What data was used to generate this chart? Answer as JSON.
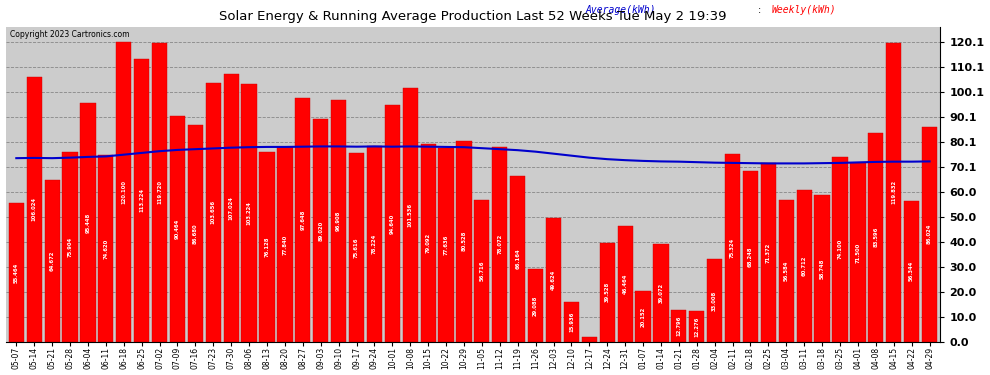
{
  "title": "Solar Energy & Running Average Production Last 52 Weeks Tue May 2 19:39",
  "copyright": "Copyright 2023 Cartronics.com",
  "legend_avg": "Average(kWh)",
  "legend_weekly": "Weekly(kWh)",
  "bar_color": "#FF0000",
  "avg_line_color": "#0000CC",
  "background_color": "#FFFFFF",
  "plot_bg_color": "#DDDDDD",
  "yticks": [
    0.0,
    10.0,
    20.0,
    30.0,
    40.0,
    50.0,
    60.0,
    70.1,
    80.1,
    90.1,
    100.1,
    110.1,
    120.1
  ],
  "dates": [
    "05-07",
    "05-14",
    "05-21",
    "05-28",
    "06-04",
    "06-11",
    "06-18",
    "06-25",
    "07-02",
    "07-09",
    "07-16",
    "07-23",
    "07-30",
    "08-06",
    "08-13",
    "08-20",
    "08-27",
    "09-03",
    "09-10",
    "09-17",
    "09-24",
    "10-01",
    "10-08",
    "10-15",
    "10-22",
    "10-29",
    "11-05",
    "11-12",
    "11-19",
    "11-26",
    "12-03",
    "12-10",
    "12-17",
    "12-24",
    "12-31",
    "01-07",
    "01-14",
    "01-21",
    "01-28",
    "02-04",
    "02-11",
    "02-18",
    "02-25",
    "03-04",
    "03-11",
    "03-18",
    "03-25",
    "04-01",
    "04-08",
    "04-15",
    "04-22",
    "04-29"
  ],
  "weekly_values": [
    55.464,
    106.024,
    64.672,
    75.904,
    95.448,
    74.62,
    120.1,
    113.224,
    119.72,
    90.464,
    86.68,
    103.656,
    107.024,
    103.224,
    76.128,
    77.84,
    97.648,
    89.02,
    96.908,
    75.616,
    78.224,
    94.64,
    101.536,
    79.092,
    77.636,
    80.528,
    56.716,
    78.072,
    66.164,
    29.088,
    49.624,
    15.936,
    1.928,
    39.528,
    46.464,
    20.152,
    39.072,
    12.796,
    12.276,
    33.008,
    75.324,
    68.248,
    71.372,
    56.584,
    60.712,
    58.748,
    74.1,
    71.5,
    83.596,
    119.832,
    56.344,
    86.024
  ],
  "avg_values": [
    73.5,
    73.6,
    73.5,
    73.7,
    74.0,
    74.2,
    74.9,
    75.6,
    76.3,
    76.8,
    77.1,
    77.4,
    77.7,
    77.9,
    78.0,
    78.0,
    78.1,
    78.2,
    78.2,
    78.1,
    78.2,
    78.1,
    78.2,
    78.1,
    78.0,
    77.9,
    77.5,
    77.1,
    76.7,
    76.1,
    75.3,
    74.5,
    73.7,
    73.1,
    72.7,
    72.4,
    72.2,
    72.1,
    71.9,
    71.7,
    71.6,
    71.5,
    71.4,
    71.4,
    71.4,
    71.5,
    71.6,
    71.8,
    72.0,
    72.1,
    72.1,
    72.2
  ]
}
